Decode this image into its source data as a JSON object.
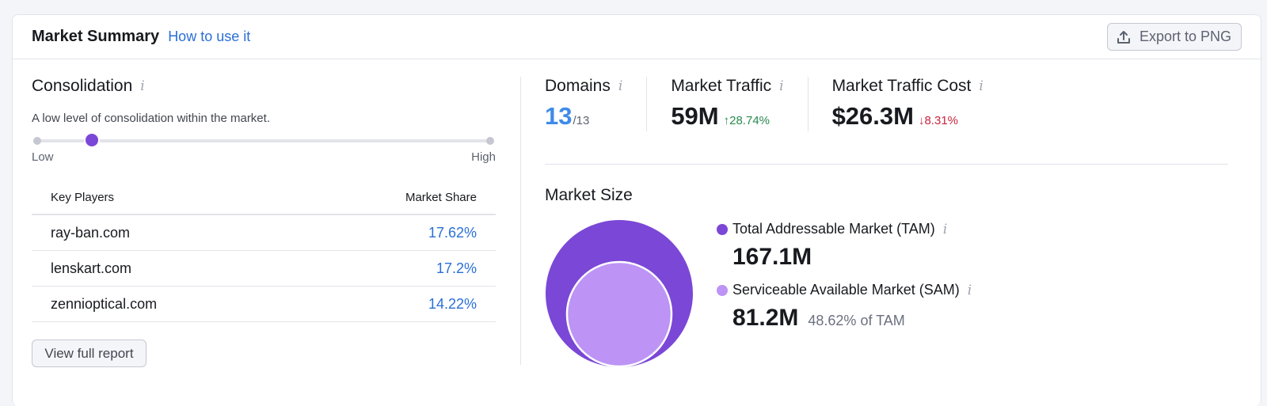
{
  "header": {
    "title": "Market Summary",
    "how_to": "How to use it",
    "export_label": "Export to PNG"
  },
  "consolidation": {
    "title": "Consolidation",
    "description": "A low level of consolidation within the market.",
    "level_fraction": 0.12,
    "low_label": "Low",
    "high_label": "High"
  },
  "key_players": {
    "col_player": "Key Players",
    "col_share": "Market Share",
    "rows": [
      {
        "domain": "ray-ban.com",
        "share": "17.62%"
      },
      {
        "domain": "lenskart.com",
        "share": "17.2%"
      },
      {
        "domain": "zennioptical.com",
        "share": "14.22%"
      }
    ],
    "view_report": "View full report"
  },
  "metrics": {
    "domains": {
      "label": "Domains",
      "value": "13",
      "total": "/13"
    },
    "traffic": {
      "label": "Market Traffic",
      "value": "59M",
      "delta": "↑28.74%"
    },
    "cost": {
      "label": "Market Traffic Cost",
      "value": "$26.3M",
      "delta": "↓8.31%"
    }
  },
  "market_size": {
    "title": "Market Size",
    "tam": {
      "label": "Total Addressable Market (TAM)",
      "value": "167.1M",
      "color": "#7b47d6"
    },
    "sam": {
      "label": "Serviceable Available Market (SAM)",
      "value": "81.2M",
      "note": "48.62% of TAM",
      "color": "#bd94f5"
    }
  }
}
